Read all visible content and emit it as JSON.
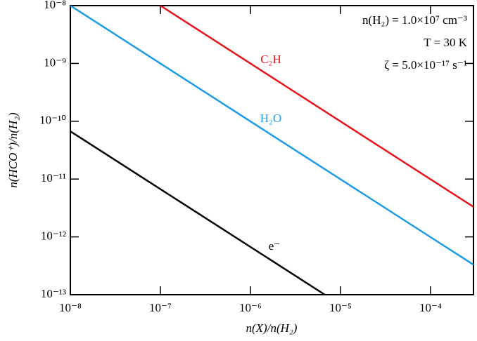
{
  "chart_data": {
    "type": "line",
    "xlabel": "n(X)/n(H₂)",
    "ylabel": "n(HCO⁺)/n(H₂)",
    "annotations": [
      "n(H₂) = 1.0×10⁷ cm⁻³",
      "T = 30 K",
      "ζ = 5.0×10⁻¹⁷ s⁻¹"
    ],
    "xscale": "log",
    "yscale": "log",
    "xlim": [
      1e-08,
      0.0003
    ],
    "ylim": [
      1e-13,
      1e-08
    ],
    "xticks": [
      {
        "value": 1e-08,
        "label": "10⁻⁸"
      },
      {
        "value": 1e-07,
        "label": "10⁻⁷"
      },
      {
        "value": 1e-06,
        "label": "10⁻⁶"
      },
      {
        "value": 1e-05,
        "label": "10⁻⁵"
      },
      {
        "value": 0.0001,
        "label": "10⁻⁴"
      }
    ],
    "yticks": [
      {
        "value": 1e-13,
        "label": "10⁻¹³"
      },
      {
        "value": 1e-12,
        "label": "10⁻¹²"
      },
      {
        "value": 1e-11,
        "label": "10⁻¹¹"
      },
      {
        "value": 1e-10,
        "label": "10⁻¹⁰"
      },
      {
        "value": 1e-09,
        "label": "10⁻⁹"
      },
      {
        "value": 1e-08,
        "label": "10⁻⁸"
      }
    ],
    "series": [
      {
        "name": "C₂H",
        "color": "#e8141c",
        "x": [
          1e-07,
          0.0003
        ],
        "values": [
          1e-08,
          3.3e-12
        ]
      },
      {
        "name": "H₂O",
        "color": "#1c9be6",
        "x": [
          1e-08,
          0.0003
        ],
        "values": [
          1e-08,
          3.3e-13
        ]
      },
      {
        "name": "e⁻",
        "color": "#000000",
        "x": [
          1e-08,
          6.7e-06
        ],
        "values": [
          6.7e-11,
          1e-13
        ]
      }
    ]
  }
}
